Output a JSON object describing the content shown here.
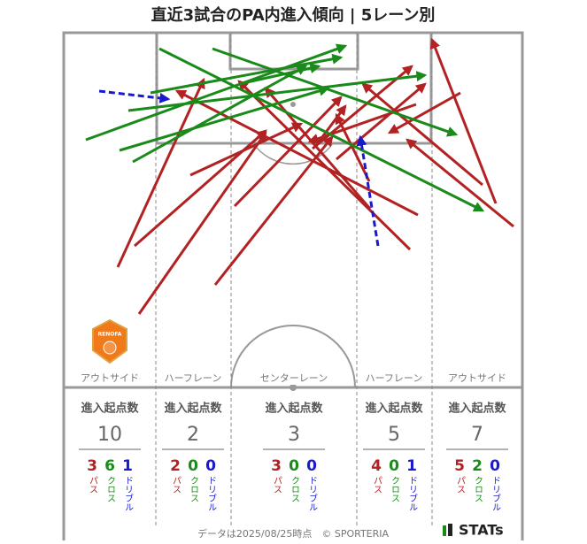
{
  "title": "直近3試合のPA内進入傾向 | 5レーン別",
  "badge": "RENOFA",
  "lanes": [
    {
      "name": "アウトサイド",
      "heading": "進入起点数",
      "total": 10,
      "counts": [
        {
          "value": 3,
          "label": "パス"
        },
        {
          "value": 6,
          "label": "クロス"
        },
        {
          "value": 1,
          "label": "ドリブル"
        }
      ]
    },
    {
      "name": "ハーフレーン",
      "heading": "進入起点数",
      "total": 2,
      "counts": [
        {
          "value": 2,
          "label": "パス"
        },
        {
          "value": 0,
          "label": "クロス"
        },
        {
          "value": 0,
          "label": "ドリブル"
        }
      ]
    },
    {
      "name": "センターレーン",
      "heading": "進入起点数",
      "total": 3,
      "counts": [
        {
          "value": 3,
          "label": "パス"
        },
        {
          "value": 0,
          "label": "クロス"
        },
        {
          "value": 0,
          "label": "ドリブル"
        }
      ]
    },
    {
      "name": "ハーフレーン",
      "heading": "進入起点数",
      "total": 5,
      "counts": [
        {
          "value": 4,
          "label": "パス"
        },
        {
          "value": 0,
          "label": "クロス"
        },
        {
          "value": 1,
          "label": "ドリブル"
        }
      ]
    },
    {
      "name": "アウトサイド",
      "heading": "進入起点数",
      "total": 7,
      "counts": [
        {
          "value": 5,
          "label": "パス"
        },
        {
          "value": 2,
          "label": "クロス"
        },
        {
          "value": 0,
          "label": "ドリブル"
        }
      ]
    }
  ],
  "footer": "データは2025/08/25時点　© SPORTERIA",
  "logo": "STATs"
}
